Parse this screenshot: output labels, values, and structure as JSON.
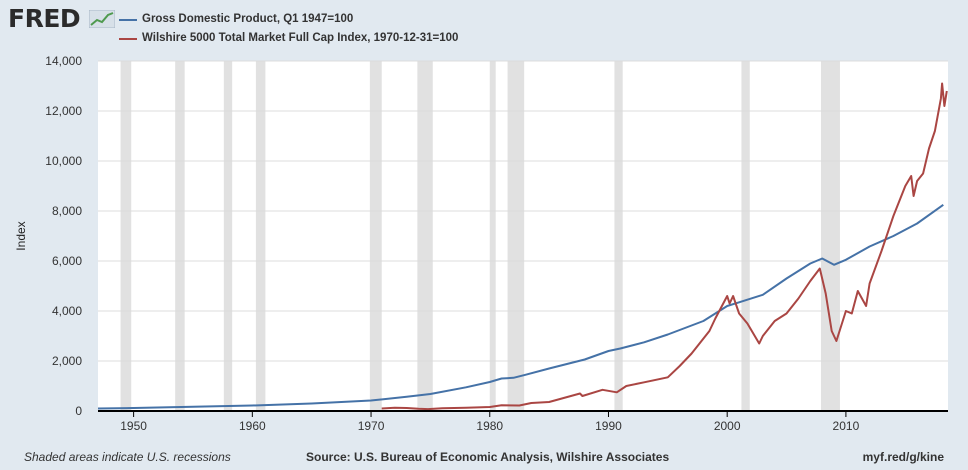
{
  "header": {
    "logo_text": "FRED",
    "logo_icon": "line-chart-icon"
  },
  "legend": [
    {
      "label": "Gross Domestic Product, Q1 1947=100",
      "color": "#4572a7"
    },
    {
      "label": "Wilshire 5000 Total Market Full Cap Index, 1970-12-31=100",
      "color": "#aa4643"
    }
  ],
  "footer": {
    "note": "Shaded areas indicate U.S. recessions",
    "source": "Source: U.S. Bureau of Economic Analysis, Wilshire Associates",
    "url": "myf.red/g/kine"
  },
  "chart_data": {
    "type": "line",
    "title": "",
    "xlabel": "",
    "ylabel": "Index",
    "xlim": [
      1947,
      2018.6
    ],
    "ylim": [
      0,
      14000
    ],
    "xticks": [
      1950,
      1960,
      1970,
      1980,
      1990,
      2000,
      2010
    ],
    "yticks": [
      0,
      2000,
      4000,
      6000,
      8000,
      10000,
      12000,
      14000
    ],
    "ytick_labels": [
      "0",
      "2,000",
      "4,000",
      "6,000",
      "8,000",
      "10,000",
      "12,000",
      "14,000"
    ],
    "grid": "horizontal",
    "legend_position": "top-left",
    "recessions": [
      [
        1948.9,
        1949.8
      ],
      [
        1953.5,
        1954.3
      ],
      [
        1957.6,
        1958.3
      ],
      [
        1960.3,
        1961.1
      ],
      [
        1969.9,
        1970.9
      ],
      [
        1973.9,
        1975.2
      ],
      [
        1980.0,
        1980.5
      ],
      [
        1981.5,
        1982.9
      ],
      [
        1990.5,
        1991.2
      ],
      [
        2001.2,
        2001.9
      ],
      [
        2007.9,
        2009.5
      ]
    ],
    "series": [
      {
        "name": "Gross Domestic Product, Q1 1947=100",
        "color": "#4572a7",
        "x": [
          1947,
          1950,
          1955,
          1960,
          1965,
          1970,
          1973,
          1975,
          1978,
          1980,
          1981,
          1982,
          1983,
          1985,
          1988,
          1990,
          1991,
          1993,
          1995,
          1998,
          2000,
          2001,
          2003,
          2005,
          2007,
          2008,
          2009,
          2010,
          2012,
          2014,
          2016,
          2018.2
        ],
        "y": [
          100,
          120,
          170,
          220,
          300,
          420,
          570,
          680,
          950,
          1160,
          1300,
          1330,
          1450,
          1700,
          2060,
          2400,
          2500,
          2750,
          3060,
          3600,
          4200,
          4350,
          4650,
          5300,
          5900,
          6100,
          5850,
          6050,
          6580,
          7000,
          7500,
          8250
        ]
      },
      {
        "name": "Wilshire 5000 Total Market Full Cap Index, 1970-12-31=100",
        "color": "#aa4643",
        "x": [
          1970.9,
          1972,
          1973,
          1974,
          1974.8,
          1976,
          1978,
          1980,
          1981,
          1982.5,
          1983.5,
          1985,
          1987.6,
          1987.8,
          1989.5,
          1990.7,
          1991.5,
          1993,
          1995,
          1996,
          1997,
          1998.5,
          1999,
          2000,
          2000.2,
          2000.5,
          2001,
          2001.7,
          2002.7,
          2003,
          2004,
          2005,
          2006,
          2007,
          2007.8,
          2008.3,
          2008.8,
          2009.2,
          2010,
          2010.5,
          2011,
          2011.7,
          2012,
          2013,
          2014,
          2015,
          2015.5,
          2015.7,
          2016,
          2016.5,
          2017,
          2017.5,
          2018,
          2018.1,
          2018.3,
          2018.5
        ],
        "y": [
          100,
          130,
          120,
          90,
          75,
          110,
          130,
          160,
          230,
          220,
          320,
          360,
          700,
          600,
          850,
          750,
          1000,
          1150,
          1350,
          1800,
          2300,
          3200,
          3700,
          4600,
          4300,
          4600,
          3900,
          3500,
          2700,
          3000,
          3600,
          3900,
          4500,
          5200,
          5700,
          4700,
          3200,
          2800,
          4000,
          3900,
          4800,
          4200,
          5100,
          6400,
          7800,
          9000,
          9400,
          8600,
          9200,
          9500,
          10500,
          11200,
          12500,
          13100,
          12200,
          12800
        ]
      }
    ]
  }
}
